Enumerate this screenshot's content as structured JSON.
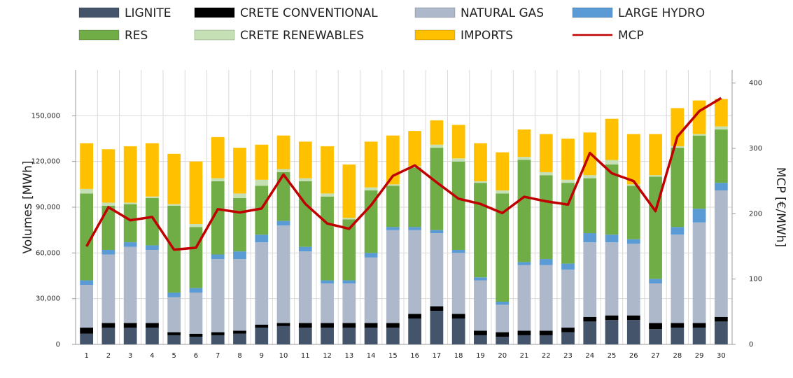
{
  "chart_data": {
    "type": "bar",
    "stacked": true,
    "categories": [
      "1",
      "2",
      "3",
      "4",
      "5",
      "6",
      "7",
      "8",
      "9",
      "10",
      "11",
      "12",
      "13",
      "14",
      "15",
      "16",
      "17",
      "18",
      "19",
      "20",
      "21",
      "22",
      "23",
      "24",
      "25",
      "26",
      "27",
      "28",
      "29",
      "30"
    ],
    "y_label": "Volumes [MWh]",
    "y2_label": "MCP [€/MWh]",
    "ylim": [
      0,
      180000
    ],
    "yticks": [
      0,
      {
        "value": 30000,
        "label": "30,000"
      },
      {
        "value": 60000,
        "label": "60,000"
      },
      {
        "value": 90000,
        "label": "90,000"
      },
      {
        "value": 120000,
        "label": "120,000"
      },
      {
        "value": 150000,
        "label": "150,000"
      }
    ],
    "y2lim": [
      0,
      420
    ],
    "y2ticks": [
      0,
      100,
      200,
      300,
      400
    ],
    "grid": true,
    "legend": "top",
    "series": [
      {
        "name": "LIGNITE",
        "color": "#44546a",
        "values": [
          7000,
          11000,
          11000,
          11000,
          6000,
          5000,
          6000,
          7000,
          11000,
          12000,
          11000,
          11000,
          11000,
          11000,
          11000,
          17000,
          22000,
          17000,
          6000,
          5000,
          6000,
          6000,
          8000,
          15000,
          16000,
          16000,
          10000,
          11000,
          11000,
          15000
        ]
      },
      {
        "name": "CRETE CONVENTIONAL",
        "color": "#000000",
        "values": [
          4000,
          3000,
          3000,
          3000,
          2000,
          2000,
          2000,
          2000,
          2000,
          2000,
          3000,
          3000,
          3000,
          3000,
          3000,
          3000,
          3000,
          3000,
          3000,
          3000,
          3000,
          3000,
          3000,
          3000,
          3000,
          3000,
          4000,
          3000,
          3000,
          3000
        ]
      },
      {
        "name": "NATURAL GAS",
        "color": "#adb9ca",
        "values": [
          28000,
          45000,
          50000,
          48000,
          23000,
          27000,
          48000,
          47000,
          54000,
          64000,
          47000,
          26000,
          26000,
          43000,
          61000,
          55000,
          48000,
          40000,
          33000,
          18000,
          43000,
          43000,
          38000,
          49000,
          48000,
          47000,
          26000,
          58000,
          66000,
          83000
        ]
      },
      {
        "name": "LARGE HYDRO",
        "color": "#5b9bd5",
        "values": [
          3000,
          3000,
          3000,
          3000,
          3000,
          3000,
          3000,
          5000,
          5000,
          3000,
          3000,
          2000,
          2000,
          3000,
          2000,
          2000,
          2000,
          2000,
          2000,
          2000,
          2000,
          4000,
          4000,
          6000,
          5000,
          3000,
          3000,
          5000,
          9000,
          5000
        ]
      },
      {
        "name": "RES",
        "color": "#70ad47",
        "values": [
          57000,
          29000,
          25000,
          31000,
          57000,
          40000,
          48000,
          35000,
          32000,
          32000,
          43000,
          55000,
          40000,
          41000,
          27000,
          39000,
          54000,
          58000,
          62000,
          71000,
          67000,
          55000,
          53000,
          36000,
          46000,
          35000,
          67000,
          52000,
          48000,
          35000
        ]
      },
      {
        "name": "CRETE RENEWABLES",
        "color": "#c5e0b4",
        "values": [
          3000,
          2000,
          1000,
          1000,
          1000,
          2000,
          2000,
          3000,
          4000,
          2000,
          2000,
          2000,
          1000,
          2000,
          1000,
          1000,
          2000,
          2000,
          1000,
          2000,
          2000,
          2000,
          2000,
          2000,
          3000,
          1000,
          1000,
          1000,
          1000,
          2000
        ]
      },
      {
        "name": "IMPORTS",
        "color": "#ffc000",
        "values": [
          30000,
          35000,
          37000,
          35000,
          33000,
          41000,
          27000,
          30000,
          23000,
          22000,
          24000,
          31000,
          35000,
          30000,
          32000,
          23000,
          16000,
          22000,
          25000,
          25000,
          18000,
          25000,
          27000,
          28000,
          27000,
          33000,
          27000,
          25000,
          22000,
          18000
        ]
      },
      {
        "name": "MCP",
        "color": "#c00000",
        "type": "line",
        "axis": "y2",
        "values": [
          150,
          210,
          190,
          195,
          145,
          148,
          207,
          202,
          208,
          260,
          215,
          185,
          177,
          213,
          258,
          274,
          248,
          223,
          215,
          201,
          226,
          219,
          214,
          293,
          262,
          250,
          204,
          318,
          357,
          377
        ]
      }
    ]
  }
}
